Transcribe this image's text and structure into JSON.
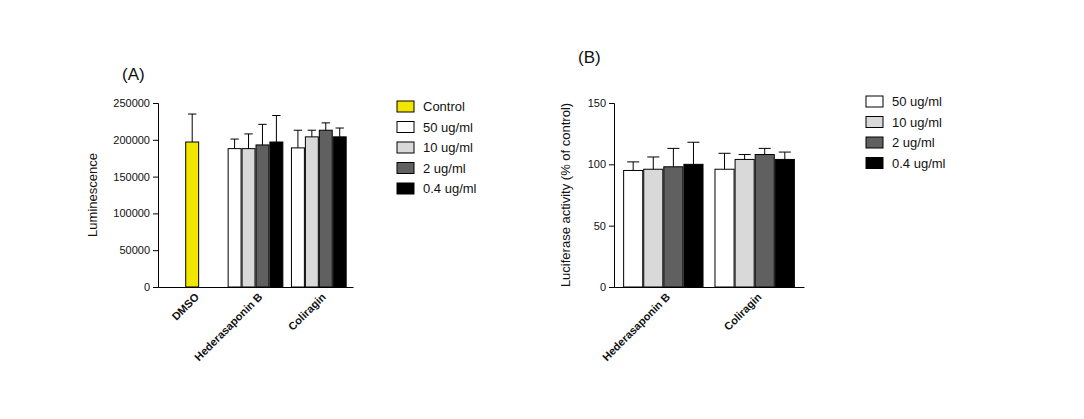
{
  "chart_data": [
    {
      "type": "bar",
      "title": "(A)",
      "y_label": "Luminescence",
      "categories": [
        "DMSO",
        "Hederasaponin B",
        "Coliragin"
      ],
      "series": [
        {
          "name": "Control",
          "color": "#f2e600",
          "values": [
            197000,
            null,
            null
          ],
          "errors": [
            38000,
            null,
            null
          ]
        },
        {
          "name": "50 ug/ml",
          "color": "#ffffff",
          "values": [
            null,
            188000,
            189000
          ],
          "errors": [
            null,
            13000,
            24000
          ]
        },
        {
          "name": "10 ug/ml",
          "color": "#d9d9d9",
          "values": [
            null,
            188000,
            204000
          ],
          "errors": [
            null,
            20000,
            9000
          ]
        },
        {
          "name": "2 ug/ml",
          "color": "#606060",
          "values": [
            null,
            193000,
            213000
          ],
          "errors": [
            null,
            28000,
            10000
          ]
        },
        {
          "name": "0.4 ug/ml",
          "color": "#000000",
          "values": [
            null,
            197000,
            204000
          ],
          "errors": [
            null,
            36000,
            12000
          ]
        }
      ],
      "ylim": [
        0,
        250000
      ],
      "yticks": [
        0,
        50000,
        100000,
        150000,
        200000,
        250000
      ],
      "legend": "right"
    },
    {
      "type": "bar",
      "title": "(B)",
      "y_label": "Luciferase activity (% of control)",
      "categories": [
        "Hederasaponin B",
        "Coliragin"
      ],
      "series": [
        {
          "name": "50 ug/ml",
          "color": "#ffffff",
          "values": [
            95,
            96
          ],
          "errors": [
            7,
            13
          ]
        },
        {
          "name": "10 ug/ml",
          "color": "#d9d9d9",
          "values": [
            96,
            104
          ],
          "errors": [
            10,
            4
          ]
        },
        {
          "name": "2 ug/ml",
          "color": "#606060",
          "values": [
            98,
            108
          ],
          "errors": [
            15,
            5
          ]
        },
        {
          "name": "0.4 ug/ml",
          "color": "#000000",
          "values": [
            100,
            104
          ],
          "errors": [
            18,
            6
          ]
        }
      ],
      "ylim": [
        0,
        150
      ],
      "yticks": [
        0,
        50,
        100,
        150
      ],
      "legend": "right"
    }
  ]
}
